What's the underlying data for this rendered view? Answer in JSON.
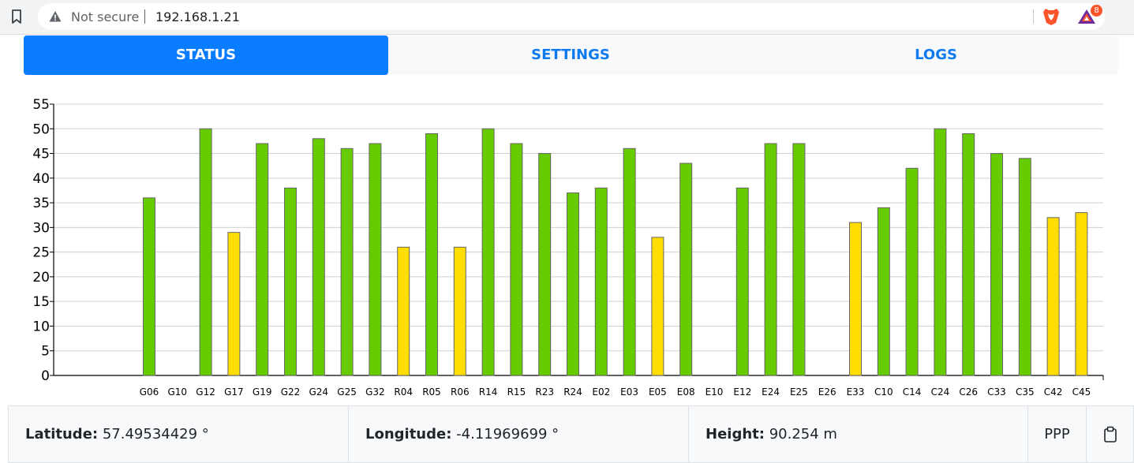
{
  "browser": {
    "security_label": "Not secure",
    "url": "192.168.1.21",
    "rewards_badge_count": "8",
    "icons": [
      "bookmark-icon",
      "warning-icon",
      "brave-shields-icon",
      "brave-rewards-icon"
    ]
  },
  "tabs": [
    {
      "label": "STATUS",
      "active": true
    },
    {
      "label": "SETTINGS",
      "active": false
    },
    {
      "label": "LOGS",
      "active": false
    }
  ],
  "colors": {
    "accent": "#0a7cff",
    "tab_text": "#0d7aed",
    "bar_green": "#66cc00",
    "bar_yellow": "#ffdd00"
  },
  "chart_data": {
    "type": "bar",
    "title": "",
    "xlabel": "",
    "ylabel": "",
    "ylim": [
      0,
      55
    ],
    "yticks": [
      0,
      5,
      10,
      15,
      20,
      25,
      30,
      35,
      40,
      45,
      50,
      55
    ],
    "grid": true,
    "categories": [
      "G06",
      "G10",
      "G12",
      "G17",
      "G19",
      "G22",
      "G24",
      "G25",
      "G32",
      "R04",
      "R05",
      "R06",
      "R14",
      "R15",
      "R23",
      "R24",
      "E02",
      "E03",
      "E05",
      "E08",
      "E10",
      "E12",
      "E24",
      "E25",
      "E26",
      "E33",
      "C10",
      "C14",
      "C24",
      "C26",
      "C33",
      "C35",
      "C42",
      "C45"
    ],
    "values": [
      36,
      0,
      50,
      29,
      47,
      38,
      48,
      46,
      47,
      26,
      49,
      26,
      50,
      47,
      45,
      37,
      38,
      46,
      28,
      43,
      0,
      38,
      47,
      47,
      0,
      31,
      34,
      42,
      50,
      49,
      45,
      44,
      32,
      33
    ],
    "bar_colors": [
      "green",
      "green",
      "green",
      "yellow",
      "green",
      "green",
      "green",
      "green",
      "green",
      "yellow",
      "green",
      "yellow",
      "green",
      "green",
      "green",
      "green",
      "green",
      "green",
      "yellow",
      "green",
      "green",
      "green",
      "green",
      "green",
      "green",
      "yellow",
      "green",
      "green",
      "green",
      "green",
      "green",
      "green",
      "yellow",
      "yellow"
    ]
  },
  "position": {
    "latitude_label": "Latitude:",
    "latitude_value": "57.49534429 °",
    "longitude_label": "Longitude:",
    "longitude_value": "-4.11969699 °",
    "height_label": "Height:",
    "height_value": "90.254 m",
    "mode": "PPP",
    "clipboard_icon": "clipboard-icon"
  }
}
